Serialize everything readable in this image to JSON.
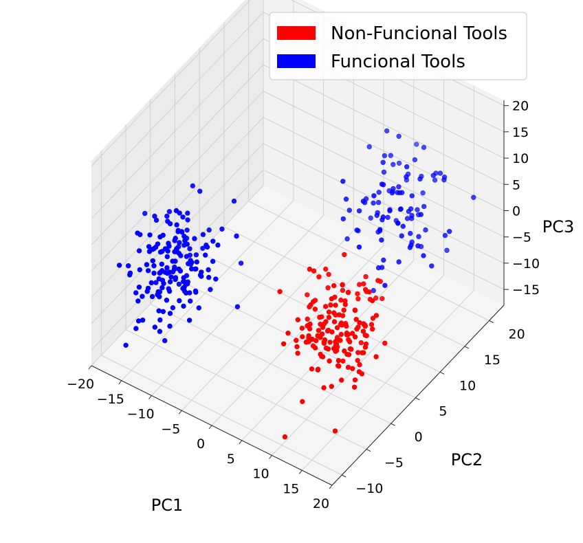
{
  "chart_data": {
    "type": "scatter",
    "title": "",
    "xlabel": "PC1",
    "ylabel": "PC2",
    "zlabel": "PC3",
    "xlim": [
      -20,
      20
    ],
    "ylim": [
      -12,
      23
    ],
    "zlim": [
      -18,
      21
    ],
    "x_ticks": [
      "−20",
      "−15",
      "−10",
      "−5",
      "0",
      "5",
      "10",
      "15",
      "20"
    ],
    "y_ticks": [
      "−10",
      "−5",
      "0",
      "5",
      "10",
      "15",
      "20"
    ],
    "z_ticks": [
      "−15",
      "−10",
      "−5",
      "0",
      "5",
      "10",
      "15",
      "20"
    ],
    "grid": true,
    "legend_position": "top-right",
    "legend": [
      {
        "label": "Non-Funcional Tools",
        "color": "#ff0000"
      },
      {
        "label": "Funcional Tools",
        "color": "#0000ff"
      }
    ],
    "series": [
      {
        "name": "Non-Funcional Tools",
        "color": "#ff0000",
        "cluster": {
          "center": [
            11,
            0,
            -5
          ],
          "spread": [
            3,
            3,
            4.5
          ],
          "n": 170
        }
      },
      {
        "name": "Funcional Tools",
        "color": "#0000ff",
        "clusters": [
          {
            "center": [
              -11,
              -6,
              0
            ],
            "spread": [
              3,
              3,
              4.5
            ],
            "n": 170
          },
          {
            "center": [
              10,
              14,
              5
            ],
            "spread": [
              3,
              3,
              4.5
            ],
            "n": 100
          }
        ]
      }
    ]
  }
}
